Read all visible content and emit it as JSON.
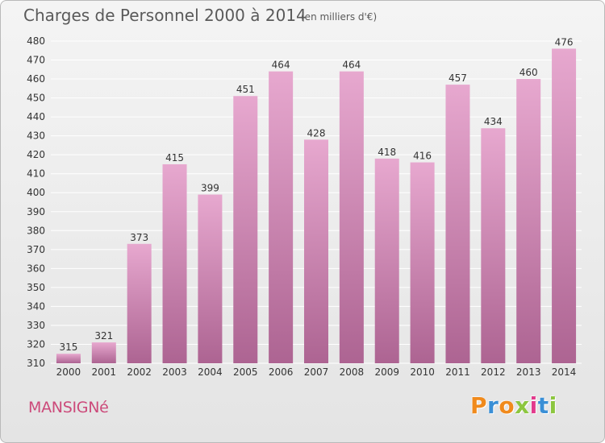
{
  "title": "Charges de Personnel 2000 à 2014",
  "subtitle": "(en milliers d'€)",
  "commune": "MANSIGNé",
  "brand": {
    "letters": [
      "P",
      "r",
      "o",
      "x",
      "i",
      "t",
      "i"
    ],
    "colors": [
      "#f08a1c",
      "#3a8fd6",
      "#f08a1c",
      "#8cc63f",
      "#e23a8c",
      "#3a8fd6",
      "#8cc63f"
    ]
  },
  "colors": {
    "bar_top": "#e7a8cf",
    "bar_bottom": "#ad6492",
    "grid": "#ffffff",
    "axis_text": "#333333",
    "commune": "#cc4a7a"
  },
  "chart_data": {
    "type": "bar",
    "title": "Charges de Personnel 2000 à 2014",
    "subtitle": "(en milliers d'€)",
    "categories": [
      "2000",
      "2001",
      "2002",
      "2003",
      "2004",
      "2005",
      "2006",
      "2007",
      "2008",
      "2009",
      "2010",
      "2011",
      "2012",
      "2013",
      "2014"
    ],
    "values": [
      315,
      321,
      373,
      415,
      399,
      451,
      464,
      428,
      464,
      418,
      416,
      457,
      434,
      460,
      476
    ],
    "ylim": [
      310,
      480
    ],
    "yticks": [
      310,
      320,
      330,
      340,
      350,
      360,
      370,
      380,
      390,
      400,
      410,
      420,
      430,
      440,
      450,
      460,
      470,
      480
    ],
    "grid": true,
    "data_labels": true,
    "xlabel": "",
    "ylabel": ""
  }
}
